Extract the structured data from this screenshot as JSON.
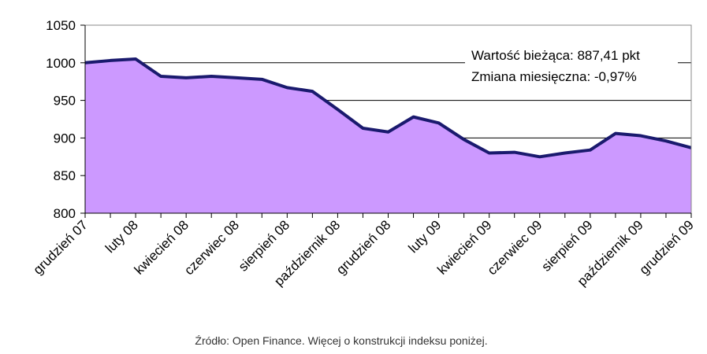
{
  "chart_data": {
    "type": "area",
    "categories": [
      "grudzień 07",
      null,
      "luty 08",
      null,
      "kwiecień 08",
      null,
      "czerwiec 08",
      null,
      "sierpień 08",
      null,
      "październik 08",
      null,
      "grudzień 08",
      null,
      "luty 09",
      null,
      "kwiecień 09",
      null,
      "czerwiec 09",
      null,
      "sierpień 09",
      null,
      "październik 09",
      null,
      "grudzień 09"
    ],
    "values": [
      1000,
      1003,
      1005,
      982,
      980,
      982,
      980,
      978,
      967,
      962,
      938,
      913,
      908,
      928,
      920,
      898,
      880,
      881,
      875,
      880,
      884,
      906,
      903,
      896,
      887
    ],
    "color": "#cc99ff",
    "line_color": "#1a1a6e",
    "ylim": [
      800,
      1050
    ],
    "yticks": [
      800,
      850,
      900,
      950,
      1000,
      1050
    ],
    "grid": true,
    "annotations": [
      "Wartość bieżąca: 887,41 pkt",
      "Zmiana miesięczna: -0,97%"
    ],
    "source": "Źródło: Open Finance. Więcej o konstrukcji indeksu poniżej."
  }
}
